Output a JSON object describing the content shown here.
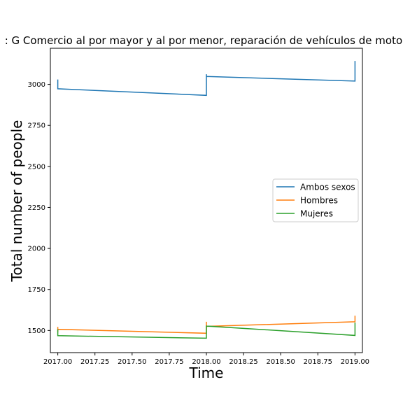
{
  "chart_data": {
    "type": "line",
    "title": ": G Comercio al por mayor y al por menor, reparación de vehículos de motor",
    "xlabel": "Time",
    "ylabel": "Total number of people",
    "xlim": [
      2016.95,
      2019.05
    ],
    "ylim": [
      1365,
      3220
    ],
    "xticks": [
      2017.0,
      2017.25,
      2017.5,
      2017.75,
      2018.0,
      2018.25,
      2018.5,
      2018.75,
      2019.0
    ],
    "xtick_labels": [
      "2017.00",
      "2017.25",
      "2017.50",
      "2017.75",
      "2018.00",
      "2018.25",
      "2018.50",
      "2018.75",
      "2019.00"
    ],
    "yticks": [
      1500,
      1750,
      2000,
      2250,
      2500,
      2750,
      3000
    ],
    "ytick_labels": [
      "1500",
      "1750",
      "2000",
      "2250",
      "2500",
      "2750",
      "3000"
    ],
    "grid": false,
    "legend_position": "center-right",
    "series": [
      {
        "name": "Ambos sexos",
        "color": "#1f77b4",
        "x": [
          2017.0,
          2017.0,
          2017.0,
          2017.0,
          2018.0,
          2018.0,
          2018.0,
          2018.0,
          2019.0,
          2019.0
        ],
        "y": [
          3030,
          2985,
          2975,
          2973,
          2933,
          3062,
          3040,
          3048,
          3020,
          3143
        ]
      },
      {
        "name": "Hombres",
        "color": "#ff7f0e",
        "x": [
          2017.0,
          2017.0,
          2017.0,
          2017.0,
          2018.0,
          2018.0,
          2018.0,
          2018.0,
          2019.0,
          2019.0
        ],
        "y": [
          1522,
          1490,
          1503,
          1507,
          1483,
          1553,
          1520,
          1525,
          1553,
          1590
        ]
      },
      {
        "name": "Mujeres",
        "color": "#2ca02c",
        "x": [
          2017.0,
          2017.0,
          2017.0,
          2018.0,
          2018.0,
          2018.0,
          2019.0,
          2019.0
        ],
        "y": [
          1508,
          1470,
          1468,
          1453,
          1530,
          1527,
          1470,
          1548
        ]
      }
    ]
  }
}
